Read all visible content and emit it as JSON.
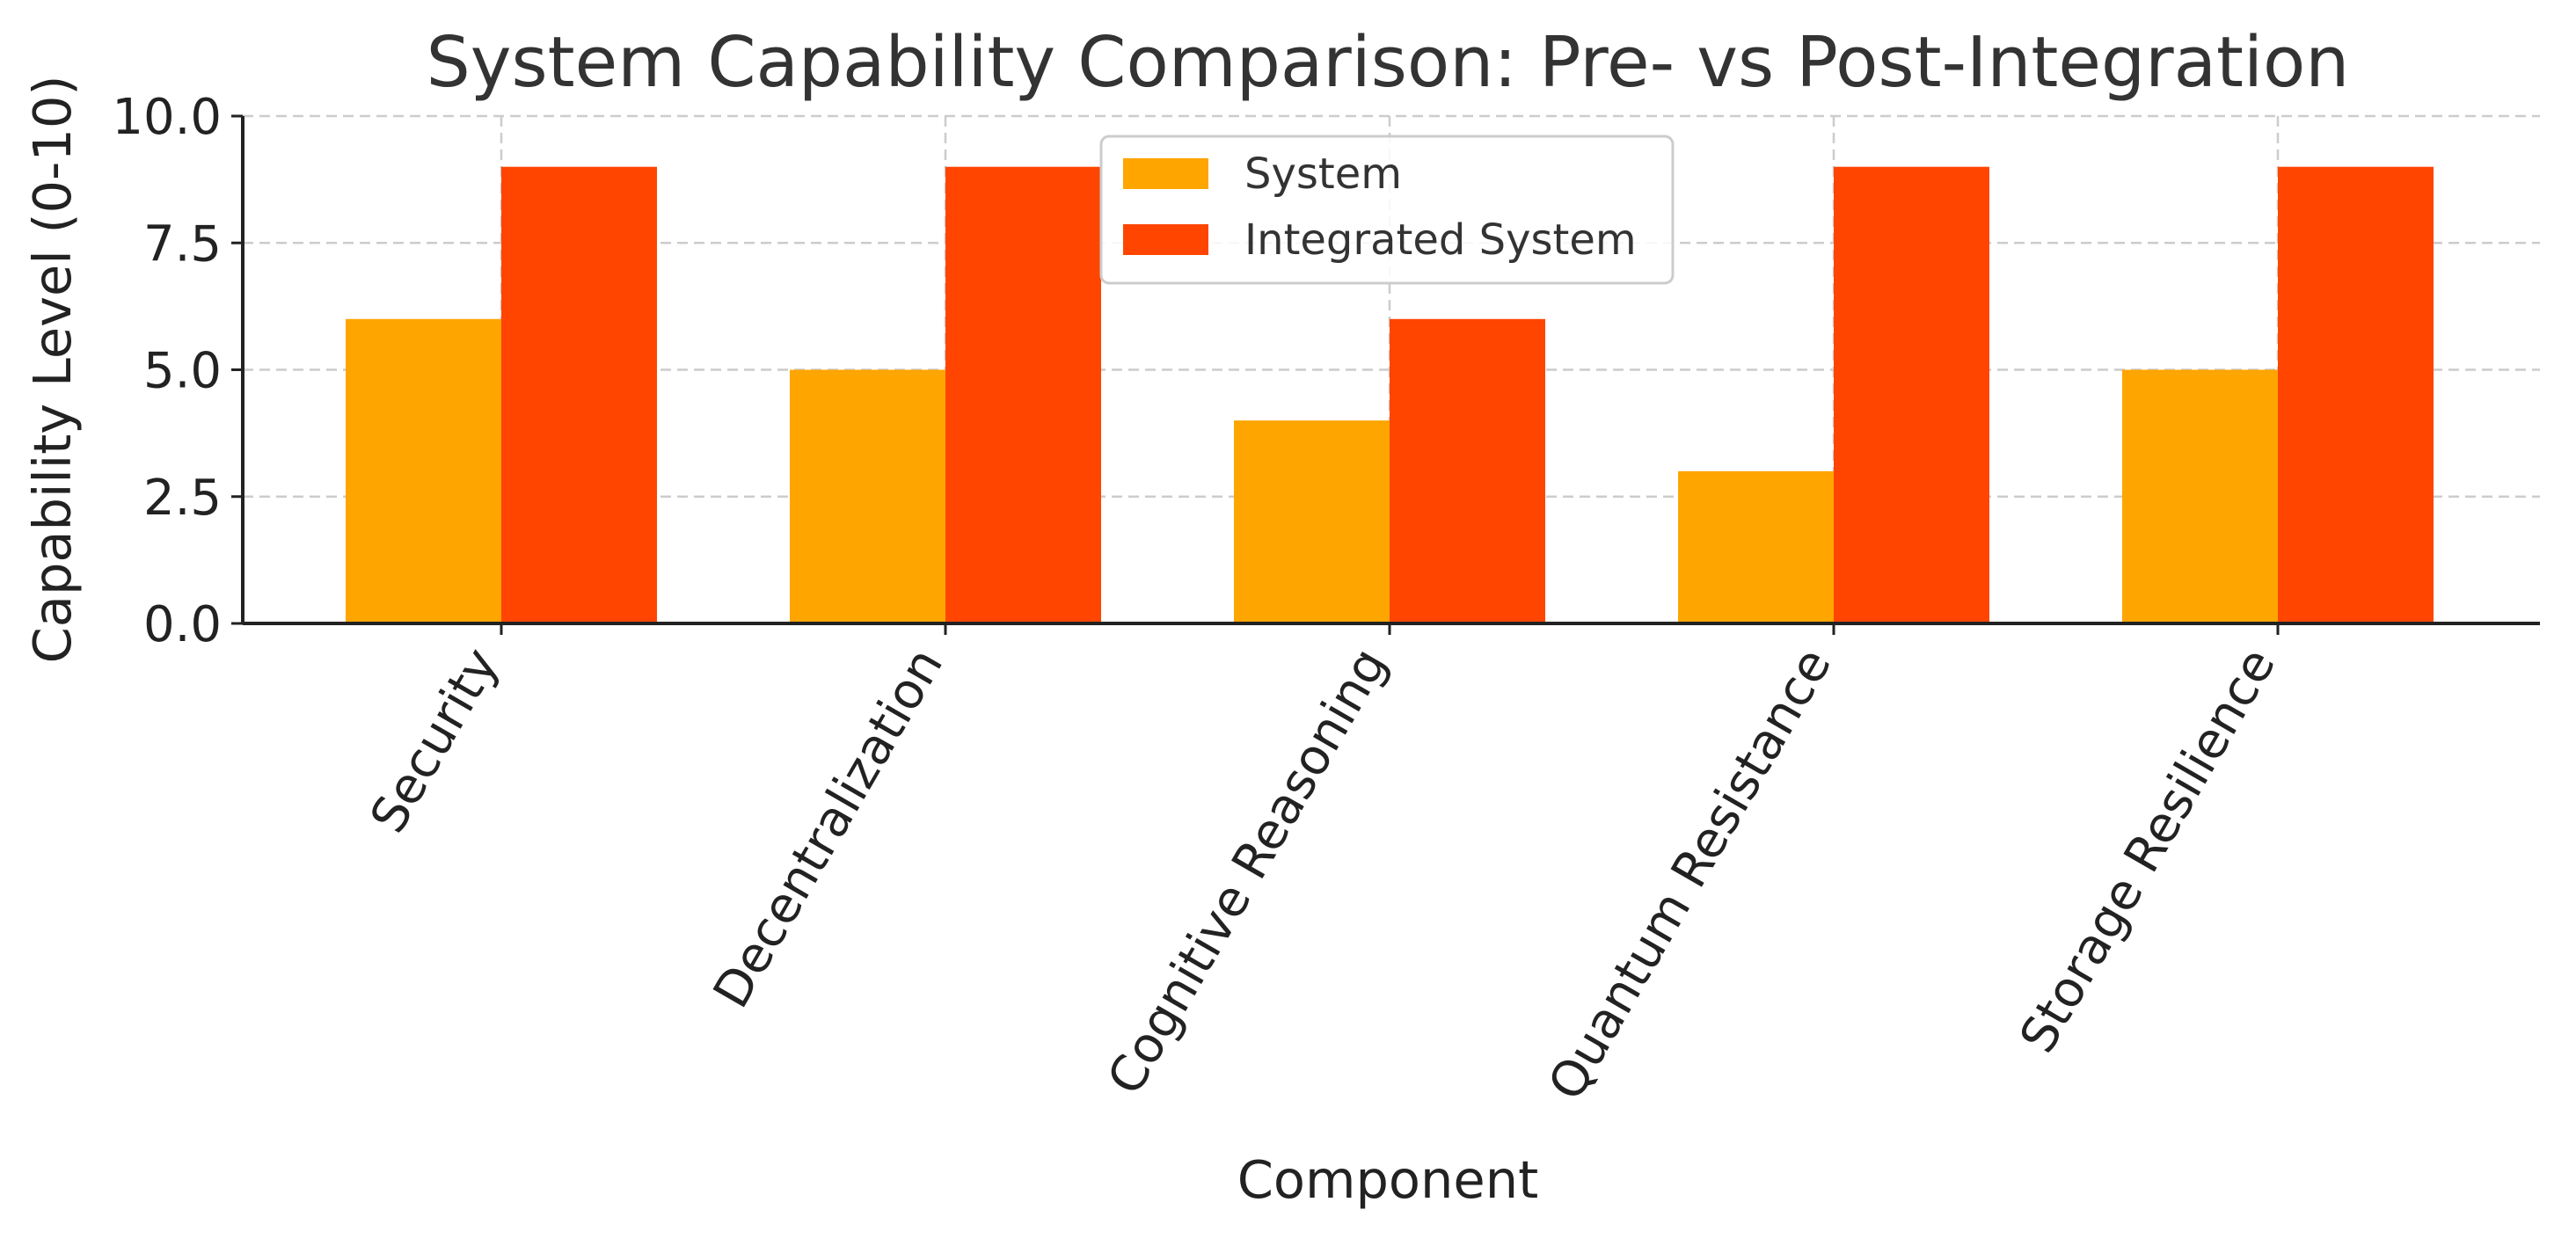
{
  "chart_data": {
    "type": "bar",
    "title": "System Capability Comparison: Pre- vs Post-Integration",
    "xlabel": "Component",
    "ylabel": "Capability Level (0-10)",
    "ylim": [
      0,
      10
    ],
    "yticks": [
      0,
      2.5,
      5,
      7.5,
      10
    ],
    "ytick_labels": [
      "0.0",
      "2.5",
      "5.0",
      "7.5",
      "10.0"
    ],
    "grid": true,
    "legend_position": "top-center",
    "categories": [
      "Security",
      "Decentralization",
      "Cognitive Reasoning",
      "Quantum Resistance",
      "Storage Resilience"
    ],
    "series": [
      {
        "name": "System",
        "color": "#FFA500",
        "values": [
          6,
          5,
          4,
          3,
          5
        ]
      },
      {
        "name": "Integrated System",
        "color": "#FF4500",
        "values": [
          9,
          9,
          6,
          9,
          9
        ]
      }
    ]
  }
}
